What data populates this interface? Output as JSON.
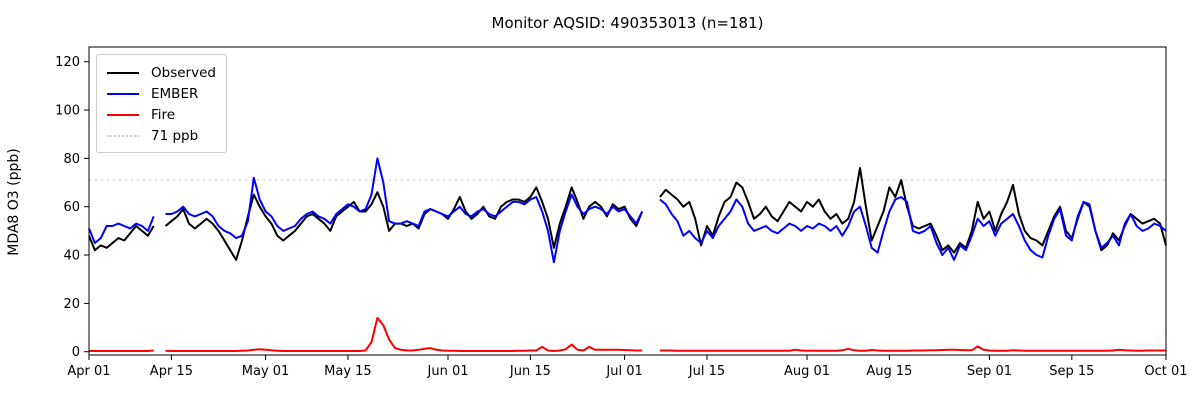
{
  "figure": {
    "title": "Monitor AQSID: 490353013 (n=181)",
    "ylabel": "MDA8 O3 (ppb)"
  },
  "chart_data": {
    "type": "line",
    "title": "Monitor AQSID: 490353013 (n=181)",
    "xlabel": "",
    "ylabel": "MDA8 O3 (ppb)",
    "n_observations": 181,
    "x_axis": {
      "unit": "days since Apr 01",
      "range_days": [
        0,
        183
      ],
      "tick_labels": [
        "Apr 01",
        "Apr 15",
        "May 01",
        "May 15",
        "Jun 01",
        "Jun 15",
        "Jul 01",
        "Jul 15",
        "Aug 01",
        "Aug 15",
        "Sep 01",
        "Sep 15",
        "Oct 01"
      ],
      "tick_days": [
        0,
        14,
        30,
        44,
        61,
        75,
        91,
        105,
        122,
        136,
        153,
        167,
        183
      ]
    },
    "y_axis": {
      "ticks": [
        0,
        20,
        40,
        60,
        80,
        100,
        120
      ],
      "ylim": [
        -1.5,
        126
      ]
    },
    "grid": false,
    "threshold_line": {
      "value": 71,
      "label": "71 ppb",
      "color": "#d3d3d3",
      "line_style": "dotted"
    },
    "legend": {
      "position": "upper left",
      "items": [
        {
          "label": "Observed",
          "color": "#000000",
          "line_style": "solid"
        },
        {
          "label": "EMBER",
          "color": "#0000ff",
          "line_style": "solid"
        },
        {
          "label": "Fire",
          "color": "#ff0000",
          "line_style": "solid"
        },
        {
          "label": "71 ppb",
          "color": "#d3d3d3",
          "line_style": "dotted"
        }
      ]
    },
    "series": [
      {
        "name": "Observed",
        "color": "#000000",
        "values": [
          48,
          42,
          44,
          43,
          45,
          47,
          46,
          49,
          52,
          50,
          48,
          52,
          null,
          52,
          54,
          56,
          59,
          53,
          51,
          53,
          55,
          53,
          50,
          46,
          42,
          38,
          46,
          56,
          65,
          60,
          56,
          53,
          48,
          46,
          48,
          50,
          53,
          56,
          57,
          55,
          53,
          50,
          56,
          58,
          60,
          62,
          58,
          58,
          61,
          66,
          60,
          50,
          53,
          53,
          52,
          53,
          51,
          57,
          59,
          58,
          57,
          55,
          59,
          64,
          58,
          55,
          57,
          60,
          56,
          55,
          60,
          62,
          63,
          63,
          62,
          64,
          68,
          62,
          55,
          43,
          53,
          60,
          68,
          62,
          55,
          60,
          62,
          60,
          56,
          61,
          59,
          60,
          55,
          52,
          58,
          null,
          null,
          64,
          67,
          65,
          63,
          60,
          62,
          55,
          44,
          52,
          48,
          56,
          62,
          64,
          70,
          68,
          62,
          55,
          57,
          60,
          56,
          54,
          58,
          62,
          60,
          58,
          62,
          60,
          63,
          58,
          55,
          57,
          53,
          55,
          62,
          76,
          60,
          46,
          52,
          58,
          68,
          64,
          71,
          60,
          52,
          51,
          52,
          53,
          48,
          42,
          44,
          41,
          45,
          43,
          50,
          62,
          55,
          58,
          50,
          57,
          62,
          69,
          57,
          50,
          47,
          46,
          44,
          50,
          56,
          60,
          50,
          47,
          55,
          62,
          60,
          50,
          42,
          44,
          49,
          46,
          52,
          57,
          55,
          53,
          54,
          55,
          53,
          44
        ]
      },
      {
        "name": "EMBER",
        "color": "#0000ff",
        "values": [
          51,
          45,
          47,
          52,
          52,
          53,
          52,
          51,
          53,
          52,
          50,
          56,
          null,
          57,
          57,
          58,
          60,
          57,
          56,
          57,
          58,
          56,
          52,
          50,
          49,
          47,
          48,
          54,
          72,
          63,
          58,
          56,
          52,
          50,
          51,
          52,
          55,
          57,
          58,
          56,
          55,
          53,
          57,
          59,
          61,
          60,
          58,
          59,
          65,
          80,
          70,
          54,
          53,
          53,
          54,
          53,
          52,
          58,
          59,
          58,
          57,
          56,
          58,
          60,
          57,
          56,
          58,
          59,
          57,
          56,
          58,
          60,
          62,
          62,
          61,
          63,
          64,
          58,
          50,
          37,
          50,
          58,
          65,
          60,
          57,
          59,
          60,
          59,
          57,
          60,
          58,
          59,
          56,
          53,
          58,
          null,
          null,
          63,
          61,
          57,
          54,
          48,
          50,
          47,
          45,
          50,
          47,
          52,
          55,
          58,
          63,
          60,
          53,
          50,
          51,
          52,
          50,
          49,
          51,
          53,
          52,
          50,
          52,
          51,
          53,
          52,
          50,
          52,
          48,
          52,
          58,
          60,
          52,
          43,
          41,
          50,
          58,
          63,
          64,
          62,
          50,
          49,
          50,
          52,
          45,
          40,
          43,
          38,
          44,
          42,
          48,
          55,
          52,
          54,
          48,
          53,
          55,
          57,
          52,
          46,
          42,
          40,
          39,
          48,
          55,
          59,
          48,
          46,
          56,
          62,
          61,
          50,
          43,
          45,
          48,
          44,
          53,
          57,
          52,
          50,
          51,
          53,
          52,
          50
        ]
      },
      {
        "name": "Fire",
        "color": "#ff0000",
        "values": [
          0.3,
          0.3,
          0.3,
          0.3,
          0.3,
          0.3,
          0.3,
          0.3,
          0.3,
          0.3,
          0.3,
          0.5,
          null,
          0.4,
          0.3,
          0.3,
          0.3,
          0.3,
          0.3,
          0.3,
          0.3,
          0.3,
          0.3,
          0.3,
          0.3,
          0.3,
          0.4,
          0.5,
          0.8,
          1.0,
          0.8,
          0.6,
          0.4,
          0.3,
          0.3,
          0.3,
          0.3,
          0.3,
          0.3,
          0.3,
          0.3,
          0.3,
          0.3,
          0.3,
          0.3,
          0.3,
          0.3,
          0.5,
          4.0,
          14.0,
          11.0,
          5.0,
          1.5,
          0.8,
          0.5,
          0.5,
          0.8,
          1.2,
          1.5,
          0.8,
          0.5,
          0.4,
          0.4,
          0.3,
          0.3,
          0.3,
          0.3,
          0.3,
          0.3,
          0.3,
          0.3,
          0.3,
          0.3,
          0.4,
          0.4,
          0.5,
          0.5,
          2.0,
          0.5,
          0.3,
          0.5,
          1.0,
          3.0,
          0.8,
          0.5,
          2.0,
          0.8,
          0.8,
          0.8,
          0.8,
          0.8,
          0.7,
          0.6,
          0.5,
          0.5,
          null,
          null,
          0.5,
          0.5,
          0.5,
          0.4,
          0.4,
          0.4,
          0.4,
          0.4,
          0.4,
          0.4,
          0.4,
          0.4,
          0.4,
          0.4,
          0.4,
          0.4,
          0.4,
          0.4,
          0.4,
          0.4,
          0.4,
          0.4,
          0.4,
          0.8,
          0.5,
          0.4,
          0.4,
          0.4,
          0.4,
          0.4,
          0.4,
          0.6,
          1.2,
          0.6,
          0.4,
          0.4,
          0.7,
          0.5,
          0.4,
          0.4,
          0.4,
          0.4,
          0.4,
          0.5,
          0.5,
          0.5,
          0.6,
          0.6,
          0.7,
          0.8,
          0.8,
          0.7,
          0.6,
          0.6,
          2.2,
          0.8,
          0.5,
          0.4,
          0.4,
          0.4,
          0.6,
          0.5,
          0.4,
          0.4,
          0.4,
          0.4,
          0.4,
          0.4,
          0.4,
          0.4,
          0.4,
          0.4,
          0.4,
          0.4,
          0.4,
          0.4,
          0.4,
          0.5,
          0.8,
          0.6,
          0.5,
          0.4,
          0.4,
          0.5,
          0.5,
          0.5,
          0.5
        ]
      }
    ]
  }
}
